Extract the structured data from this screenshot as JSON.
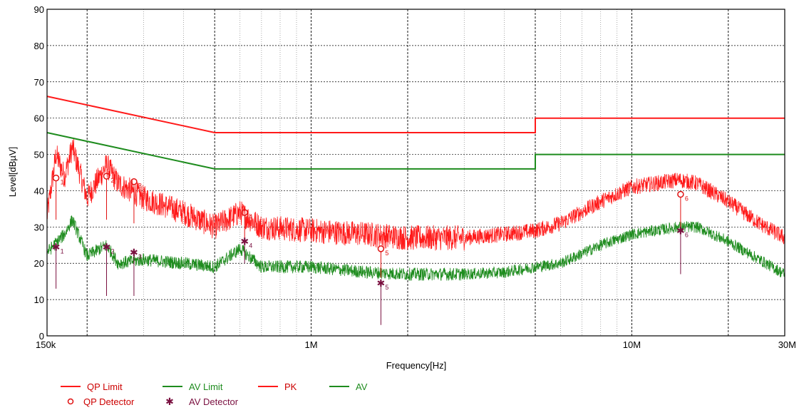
{
  "colors": {
    "qp": "#ff1a1a",
    "av": "#1e8c1e",
    "marker_qp": "#e01010",
    "marker_av": "#7a1040",
    "grid": "#000000"
  },
  "chart_data": {
    "type": "line",
    "xscale": "log",
    "xlim": [
      150000,
      30000000
    ],
    "ylim": [
      0,
      90
    ],
    "xlabel": "Frequency[Hz]",
    "ylabel": "Level[dBµV]",
    "grid": true,
    "legend_position": "bottom-left",
    "y_ticks": [
      "0",
      "10",
      "20",
      "30",
      "40",
      "50",
      "60",
      "70",
      "80",
      "90"
    ],
    "x_ticks": [
      {
        "value": 150000,
        "label": "150k"
      },
      {
        "value": 1000000,
        "label": "1M"
      },
      {
        "value": 10000000,
        "label": "10M"
      },
      {
        "value": 30000000,
        "label": "30M"
      }
    ],
    "legend": {
      "qp_limit": "QP Limit",
      "av_limit": "AV Limit",
      "pk": "PK",
      "av": "AV",
      "qp_detector": "QP Detector",
      "av_detector": "AV Detector"
    },
    "series": [
      {
        "name": "QP Limit",
        "x": [
          150000,
          500000,
          500000,
          5000000,
          5000000,
          30000000
        ],
        "y": [
          66,
          56,
          56,
          56,
          60,
          60
        ]
      },
      {
        "name": "AV Limit",
        "x": [
          150000,
          500000,
          500000,
          5000000,
          5000000,
          30000000
        ],
        "y": [
          56,
          46,
          46,
          46,
          50,
          50
        ]
      },
      {
        "name": "PK",
        "x": [
          150000,
          160000,
          170000,
          180000,
          200000,
          230000,
          250000,
          300000,
          400000,
          500000,
          600000,
          700000,
          1000000,
          1500000,
          2000000,
          3000000,
          4000000,
          5000000,
          6000000,
          8000000,
          10000000,
          14000000,
          16000000,
          20000000,
          25000000,
          30000000
        ],
        "y": [
          33,
          50,
          44,
          52,
          38,
          47,
          42,
          38,
          34,
          30,
          34,
          30,
          29,
          28,
          27,
          27,
          28,
          29,
          31,
          37,
          41,
          43,
          42,
          37,
          31,
          27
        ]
      },
      {
        "name": "AV",
        "x": [
          150000,
          170000,
          180000,
          200000,
          230000,
          250000,
          300000,
          400000,
          500000,
          600000,
          700000,
          1000000,
          1500000,
          2000000,
          3000000,
          4000000,
          5000000,
          6000000,
          8000000,
          10000000,
          14000000,
          16000000,
          20000000,
          25000000,
          30000000
        ],
        "y": [
          23,
          28,
          32,
          22,
          25,
          20,
          21,
          20,
          19,
          24,
          19,
          19,
          17.5,
          17,
          17,
          17.5,
          19,
          20,
          25,
          28,
          30,
          30,
          26,
          21,
          17
        ]
      }
    ],
    "qp_detector": [
      {
        "label": "1",
        "x": 160000,
        "y": 43.5,
        "stem_bottom": 32
      },
      {
        "label": "2",
        "x": 230000,
        "y": 44,
        "stem_bottom": 32
      },
      {
        "label": "3",
        "x": 280000,
        "y": 42.5,
        "stem_bottom": 31
      },
      {
        "label": "4",
        "x": 620000,
        "y": 34,
        "stem_bottom": 25
      },
      {
        "label": "5",
        "x": 1650000,
        "y": 24,
        "stem_bottom": 16
      },
      {
        "label": "6",
        "x": 14200000,
        "y": 39,
        "stem_bottom": 30
      }
    ],
    "av_detector": [
      {
        "label": "1",
        "x": 160000,
        "y": 24.5,
        "stem_bottom": 13
      },
      {
        "label": "2",
        "x": 230000,
        "y": 24.5,
        "stem_bottom": 11
      },
      {
        "label": "3",
        "x": 280000,
        "y": 23,
        "stem_bottom": 11
      },
      {
        "label": "4",
        "x": 620000,
        "y": 26,
        "stem_bottom": 20
      },
      {
        "label": "5",
        "x": 1650000,
        "y": 14.5,
        "stem_bottom": 3
      },
      {
        "label": "6",
        "x": 14200000,
        "y": 29,
        "stem_bottom": 17
      }
    ]
  }
}
